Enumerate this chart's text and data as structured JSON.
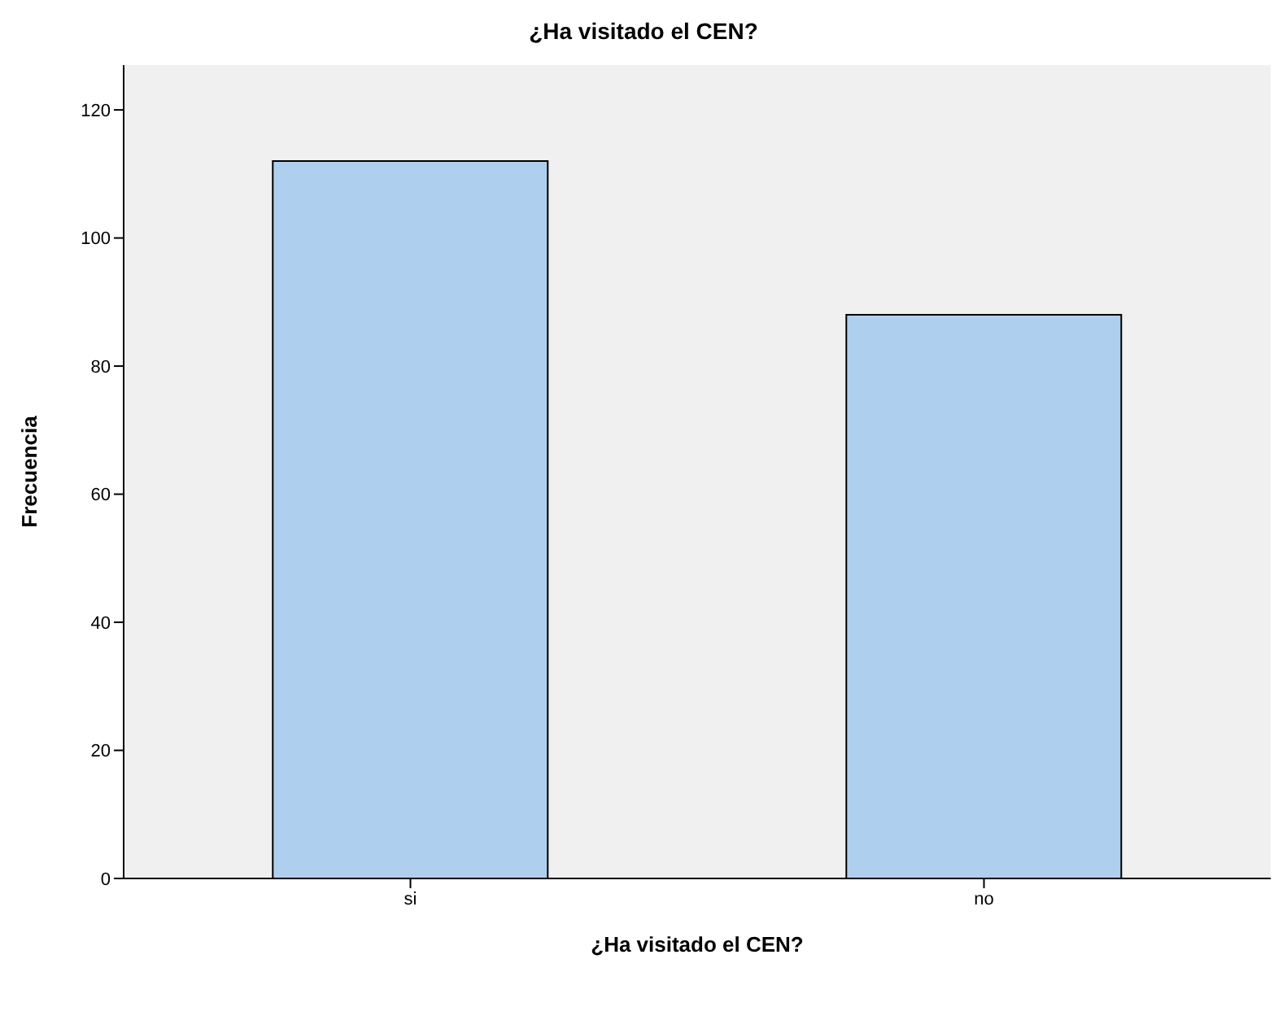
{
  "chart_data": {
    "type": "bar",
    "title": "¿Ha visitado el CEN?",
    "xlabel": "¿Ha visitado el CEN?",
    "ylabel": "Frecuencia",
    "categories": [
      "si",
      "no"
    ],
    "values": [
      112,
      88
    ],
    "color": "#aed0ee",
    "ylim": [
      0,
      127
    ],
    "yticks": [
      0,
      20,
      40,
      60,
      80,
      100,
      120
    ],
    "grid": false
  }
}
